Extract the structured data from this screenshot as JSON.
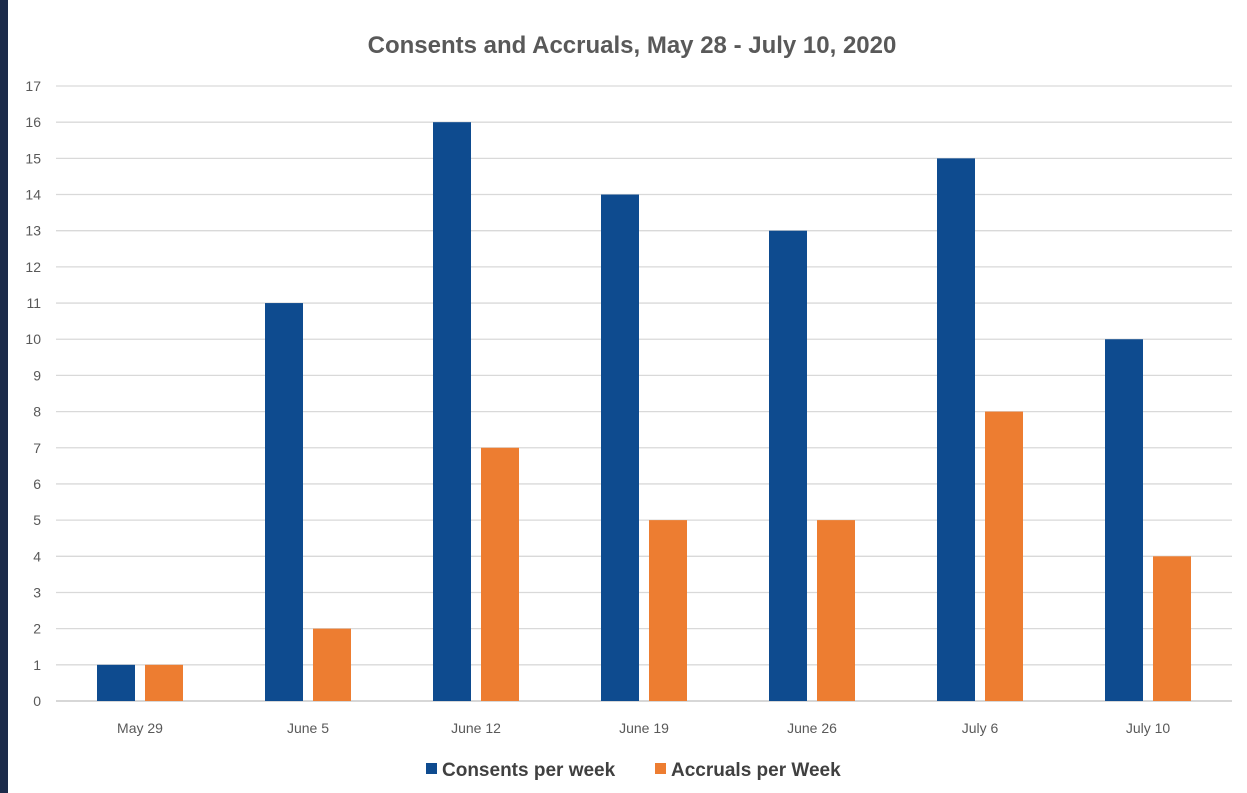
{
  "chart_data": {
    "type": "bar",
    "title": "Consents and Accruals, May 28 - July 10, 2020",
    "categories": [
      "May 29",
      "June 5",
      "June 12",
      "June 19",
      "June 26",
      "July 6",
      "July 10"
    ],
    "series": [
      {
        "name": "Consents per week",
        "values": [
          1,
          11,
          16,
          14,
          13,
          15,
          10
        ],
        "color": "#0e4b8f"
      },
      {
        "name": "Accruals per Week",
        "values": [
          1,
          2,
          7,
          5,
          5,
          8,
          4
        ],
        "color": "#ed7d31"
      }
    ],
    "ylim": [
      0,
      17
    ],
    "y_ticks": [
      0,
      1,
      2,
      3,
      4,
      5,
      6,
      7,
      8,
      9,
      10,
      11,
      12,
      13,
      14,
      15,
      16,
      17
    ],
    "grid": true,
    "legend_position": "bottom",
    "colors": {
      "grid": "#d9d9d9",
      "axis": "#bfbfbf",
      "text": "#595959"
    }
  }
}
